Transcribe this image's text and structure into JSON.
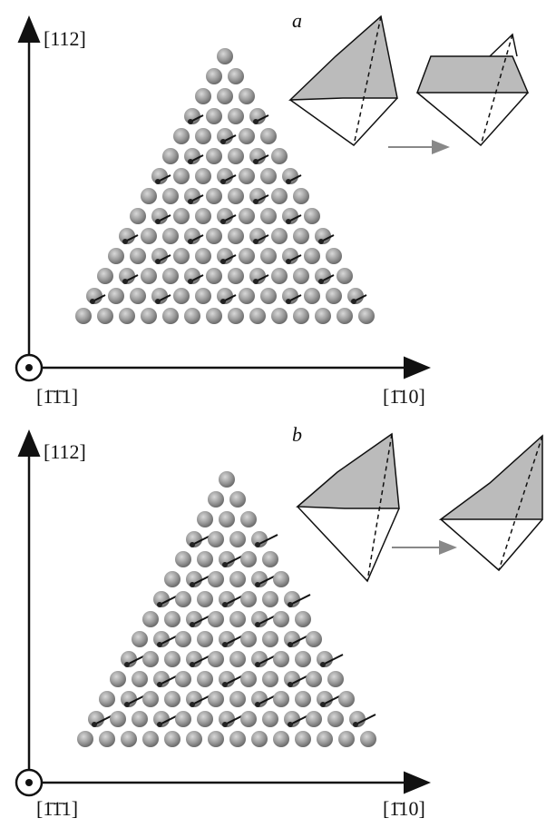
{
  "panels": [
    {
      "label": "a",
      "y_axis": "[112]",
      "x_axis_left": "[1̄1̄1]",
      "x_axis_right": "[1̄10]"
    },
    {
      "label": "b",
      "y_axis": "[112]",
      "x_axis_left": "[1̄1̄1]",
      "x_axis_right": "[1̄10]"
    }
  ]
}
